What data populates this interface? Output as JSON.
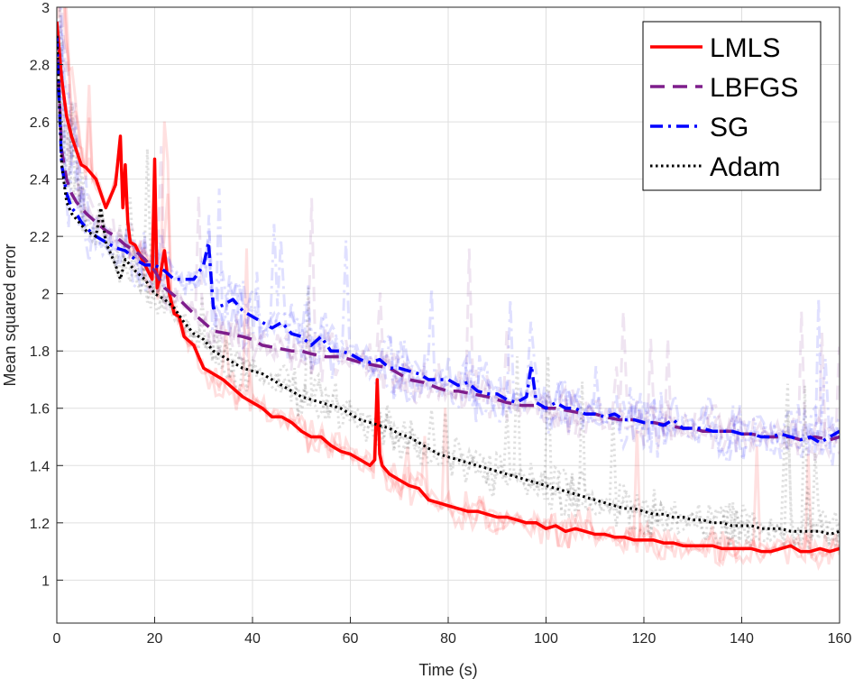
{
  "chart_data": {
    "type": "line",
    "title": "",
    "xlabel": "Time (s)",
    "ylabel": "Mean squared error",
    "xlim": [
      0,
      160
    ],
    "ylim": [
      0.85,
      3.0
    ],
    "xticks": [
      0,
      20,
      40,
      60,
      80,
      100,
      120,
      140,
      160
    ],
    "yticks": [
      1,
      1.2,
      1.4,
      1.6,
      1.8,
      2,
      2.2,
      2.4,
      2.6,
      2.8,
      3
    ],
    "xtick_labels": [
      "0",
      "20",
      "40",
      "60",
      "80",
      "100",
      "120",
      "140",
      "160"
    ],
    "ytick_labels": [
      "1",
      "1.2",
      "1.4",
      "1.6",
      "1.8",
      "2",
      "2.2",
      "2.4",
      "2.6",
      "2.8",
      "3"
    ],
    "grid": true,
    "legend_position": "top-right",
    "series": [
      {
        "name": "LMLS",
        "color": "#ff0000",
        "style": "solid",
        "x": [
          0,
          1,
          2,
          3,
          4,
          5,
          6,
          8,
          10,
          12,
          13,
          13.5,
          14,
          14.5,
          15,
          16,
          18,
          19.5,
          20,
          20.5,
          21,
          22,
          23,
          24,
          25,
          26,
          28,
          30,
          32,
          34,
          36,
          38,
          40,
          42,
          44,
          46,
          48,
          50,
          52,
          54,
          56,
          58,
          60,
          62,
          64,
          65,
          65.5,
          66,
          66.5,
          68,
          70,
          72,
          74,
          76,
          78,
          80,
          82,
          84,
          86,
          88,
          90,
          92,
          94,
          96,
          98,
          100,
          102,
          104,
          106,
          108,
          110,
          112,
          114,
          116,
          118,
          120,
          122,
          124,
          126,
          128,
          130,
          132,
          134,
          136,
          138,
          140,
          142,
          144,
          146,
          148,
          150,
          152,
          154,
          156,
          158,
          160
        ],
        "y": [
          2.95,
          2.75,
          2.62,
          2.55,
          2.5,
          2.45,
          2.44,
          2.4,
          2.3,
          2.38,
          2.55,
          2.3,
          2.45,
          2.25,
          2.18,
          2.17,
          2.1,
          2.05,
          2.47,
          2.02,
          2.05,
          2.15,
          2.0,
          1.93,
          1.92,
          1.85,
          1.82,
          1.74,
          1.72,
          1.7,
          1.67,
          1.64,
          1.62,
          1.6,
          1.57,
          1.57,
          1.55,
          1.52,
          1.5,
          1.5,
          1.47,
          1.45,
          1.44,
          1.42,
          1.4,
          1.42,
          1.7,
          1.44,
          1.4,
          1.37,
          1.35,
          1.33,
          1.32,
          1.28,
          1.27,
          1.26,
          1.25,
          1.24,
          1.24,
          1.23,
          1.22,
          1.22,
          1.21,
          1.2,
          1.2,
          1.18,
          1.19,
          1.17,
          1.18,
          1.17,
          1.16,
          1.16,
          1.15,
          1.15,
          1.14,
          1.14,
          1.14,
          1.13,
          1.13,
          1.12,
          1.12,
          1.12,
          1.12,
          1.11,
          1.11,
          1.11,
          1.11,
          1.1,
          1.1,
          1.11,
          1.12,
          1.1,
          1.1,
          1.11,
          1.1,
          1.11
        ]
      },
      {
        "name": "LBFGS",
        "color": "#7e1e8c",
        "style": "dashed",
        "x": [
          0,
          1,
          2,
          3,
          4,
          5,
          6,
          8,
          10,
          12,
          14,
          16,
          18,
          20,
          22,
          25,
          28,
          30,
          32,
          35,
          38,
          40,
          42,
          45,
          48,
          50,
          52,
          55,
          58,
          60,
          62,
          65,
          68,
          70,
          72,
          75,
          78,
          80,
          82,
          85,
          88,
          90,
          92,
          95,
          98,
          100,
          102,
          105,
          108,
          110,
          112,
          115,
          118,
          120,
          122,
          125,
          128,
          130,
          132,
          135,
          138,
          140,
          142,
          145,
          148,
          150,
          152,
          155,
          158,
          160
        ],
        "y": [
          2.9,
          2.5,
          2.4,
          2.35,
          2.32,
          2.3,
          2.28,
          2.25,
          2.22,
          2.2,
          2.17,
          2.15,
          2.12,
          2.08,
          2.02,
          1.98,
          1.93,
          1.9,
          1.87,
          1.86,
          1.85,
          1.84,
          1.82,
          1.81,
          1.8,
          1.8,
          1.79,
          1.78,
          1.78,
          1.77,
          1.76,
          1.75,
          1.74,
          1.72,
          1.7,
          1.69,
          1.67,
          1.66,
          1.66,
          1.65,
          1.64,
          1.63,
          1.62,
          1.61,
          1.61,
          1.6,
          1.6,
          1.59,
          1.58,
          1.58,
          1.57,
          1.56,
          1.56,
          1.55,
          1.55,
          1.54,
          1.53,
          1.53,
          1.52,
          1.52,
          1.52,
          1.51,
          1.51,
          1.5,
          1.5,
          1.5,
          1.49,
          1.5,
          1.49,
          1.5
        ]
      },
      {
        "name": "SG",
        "color": "#0000ff",
        "style": "dashdot",
        "x": [
          0,
          1,
          2,
          3,
          4,
          5,
          6,
          8,
          10,
          12,
          14,
          16,
          18,
          20,
          22,
          24,
          26,
          28,
          30,
          31,
          32,
          34,
          36,
          38,
          40,
          42,
          44,
          46,
          48,
          50,
          52,
          54,
          56,
          58,
          60,
          62,
          64,
          66,
          68,
          70,
          72,
          74,
          76,
          78,
          80,
          82,
          84,
          86,
          88,
          90,
          92,
          94,
          96,
          97,
          98,
          100,
          102,
          104,
          106,
          108,
          110,
          112,
          114,
          116,
          118,
          120,
          122,
          124,
          126,
          128,
          130,
          132,
          134,
          136,
          138,
          140,
          142,
          144,
          146,
          148,
          150,
          152,
          154,
          156,
          158,
          160
        ],
        "y": [
          2.9,
          2.45,
          2.35,
          2.3,
          2.28,
          2.25,
          2.23,
          2.2,
          2.18,
          2.16,
          2.15,
          2.12,
          2.1,
          2.1,
          2.08,
          2.05,
          2.05,
          2.05,
          2.1,
          2.18,
          1.95,
          1.96,
          1.98,
          1.94,
          1.92,
          1.9,
          1.88,
          1.9,
          1.86,
          1.85,
          1.82,
          1.85,
          1.8,
          1.8,
          1.79,
          1.77,
          1.76,
          1.77,
          1.74,
          1.74,
          1.73,
          1.72,
          1.7,
          1.7,
          1.7,
          1.68,
          1.69,
          1.66,
          1.65,
          1.65,
          1.63,
          1.62,
          1.64,
          1.75,
          1.62,
          1.6,
          1.62,
          1.6,
          1.6,
          1.58,
          1.58,
          1.57,
          1.58,
          1.56,
          1.56,
          1.55,
          1.55,
          1.54,
          1.56,
          1.53,
          1.53,
          1.53,
          1.52,
          1.52,
          1.52,
          1.51,
          1.51,
          1.5,
          1.5,
          1.51,
          1.5,
          1.49,
          1.5,
          1.48,
          1.5,
          1.52
        ]
      },
      {
        "name": "Adam",
        "color": "#000000",
        "style": "dotted",
        "x": [
          0,
          1,
          2,
          3,
          4,
          5,
          6,
          8,
          9,
          10,
          12,
          13,
          14,
          16,
          18,
          20,
          22,
          24,
          26,
          28,
          30,
          32,
          34,
          36,
          38,
          40,
          42,
          44,
          46,
          48,
          50,
          52,
          54,
          56,
          58,
          60,
          62,
          64,
          66,
          68,
          70,
          72,
          74,
          76,
          78,
          80,
          82,
          84,
          86,
          88,
          90,
          92,
          94,
          96,
          98,
          100,
          102,
          104,
          106,
          108,
          110,
          112,
          114,
          116,
          118,
          120,
          122,
          124,
          126,
          128,
          130,
          132,
          134,
          136,
          138,
          140,
          142,
          144,
          146,
          148,
          150,
          152,
          154,
          156,
          158,
          160
        ],
        "y": [
          2.9,
          2.45,
          2.32,
          2.28,
          2.26,
          2.24,
          2.22,
          2.2,
          2.3,
          2.18,
          2.1,
          2.05,
          2.12,
          2.08,
          2.05,
          2.0,
          1.98,
          1.95,
          1.9,
          1.86,
          1.84,
          1.8,
          1.78,
          1.76,
          1.74,
          1.73,
          1.72,
          1.7,
          1.68,
          1.66,
          1.64,
          1.63,
          1.62,
          1.61,
          1.6,
          1.58,
          1.56,
          1.55,
          1.54,
          1.53,
          1.51,
          1.5,
          1.48,
          1.46,
          1.44,
          1.43,
          1.42,
          1.41,
          1.4,
          1.39,
          1.38,
          1.37,
          1.36,
          1.35,
          1.34,
          1.33,
          1.32,
          1.31,
          1.3,
          1.29,
          1.28,
          1.27,
          1.26,
          1.25,
          1.25,
          1.24,
          1.23,
          1.23,
          1.22,
          1.22,
          1.21,
          1.21,
          1.2,
          1.2,
          1.19,
          1.19,
          1.19,
          1.18,
          1.18,
          1.18,
          1.17,
          1.17,
          1.17,
          1.17,
          1.16,
          1.17
        ]
      }
    ]
  }
}
